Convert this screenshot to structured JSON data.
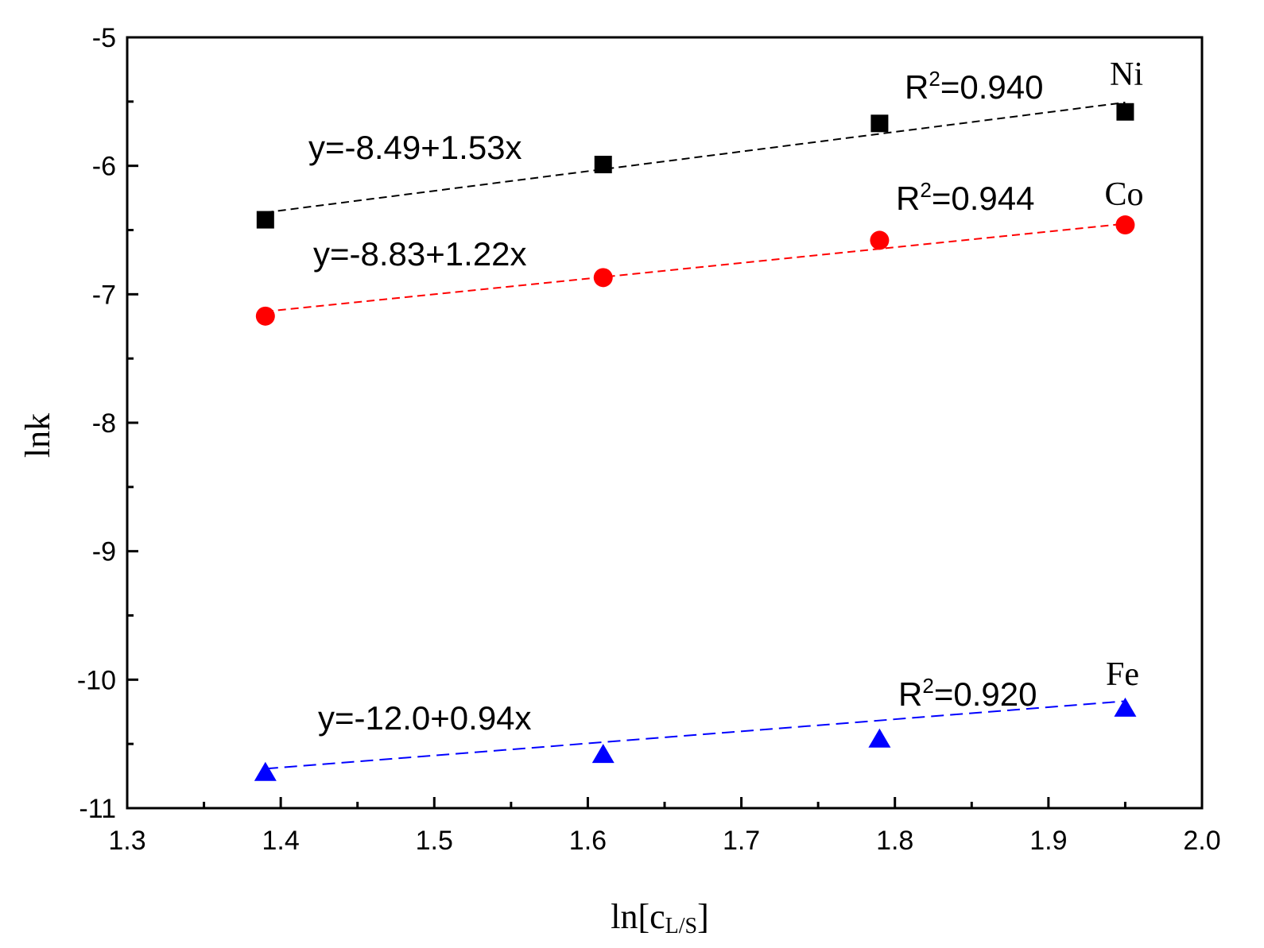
{
  "chart_data": {
    "type": "scatter",
    "xlabel": "ln[c",
    "xlabel_sub": "L/S",
    "xlabel_end": "]",
    "ylabel": "lnk",
    "xlim": [
      1.3,
      2.0
    ],
    "ylim": [
      -11,
      -5
    ],
    "xticks": [
      1.3,
      1.4,
      1.5,
      1.6,
      1.7,
      1.8,
      1.9,
      2.0
    ],
    "xtick_labels": [
      "1.3",
      "1.4",
      "1.5",
      "1.6",
      "1.7",
      "1.8",
      "1.9",
      "2.0"
    ],
    "yticks": [
      -11,
      -10,
      -9,
      -8,
      -7,
      -6,
      -5
    ],
    "ytick_labels": [
      "-11",
      "-10",
      "-9",
      "-8",
      "-7",
      "-6",
      "-5"
    ],
    "grid": false,
    "series": [
      {
        "name": "Ni",
        "marker": "square",
        "color": "#000000",
        "x": [
          1.39,
          1.61,
          1.79,
          1.95
        ],
        "y": [
          -6.42,
          -5.99,
          -5.67,
          -5.58
        ],
        "fit": {
          "intercept": -8.49,
          "slope": 1.53
        },
        "equation": "y=-8.49+1.53x",
        "r2_prefix": "R",
        "r2_value": "=0.940"
      },
      {
        "name": "Co",
        "marker": "circle",
        "color": "#ff0000",
        "x": [
          1.39,
          1.61,
          1.79,
          1.95
        ],
        "y": [
          -7.17,
          -6.87,
          -6.58,
          -6.46
        ],
        "fit": {
          "intercept": -8.83,
          "slope": 1.22
        },
        "equation": "y=-8.83+1.22x",
        "r2_prefix": "R",
        "r2_value": "=0.944"
      },
      {
        "name": "Fe",
        "marker": "triangle",
        "color": "#0000ff",
        "x": [
          1.39,
          1.61,
          1.79,
          1.95
        ],
        "y": [
          -10.72,
          -10.58,
          -10.46,
          -10.22
        ],
        "fit": {
          "intercept": -12.0,
          "slope": 0.94
        },
        "equation": "y=-12.0+0.94x",
        "r2_prefix": "R",
        "r2_value": "=0.920"
      }
    ]
  }
}
